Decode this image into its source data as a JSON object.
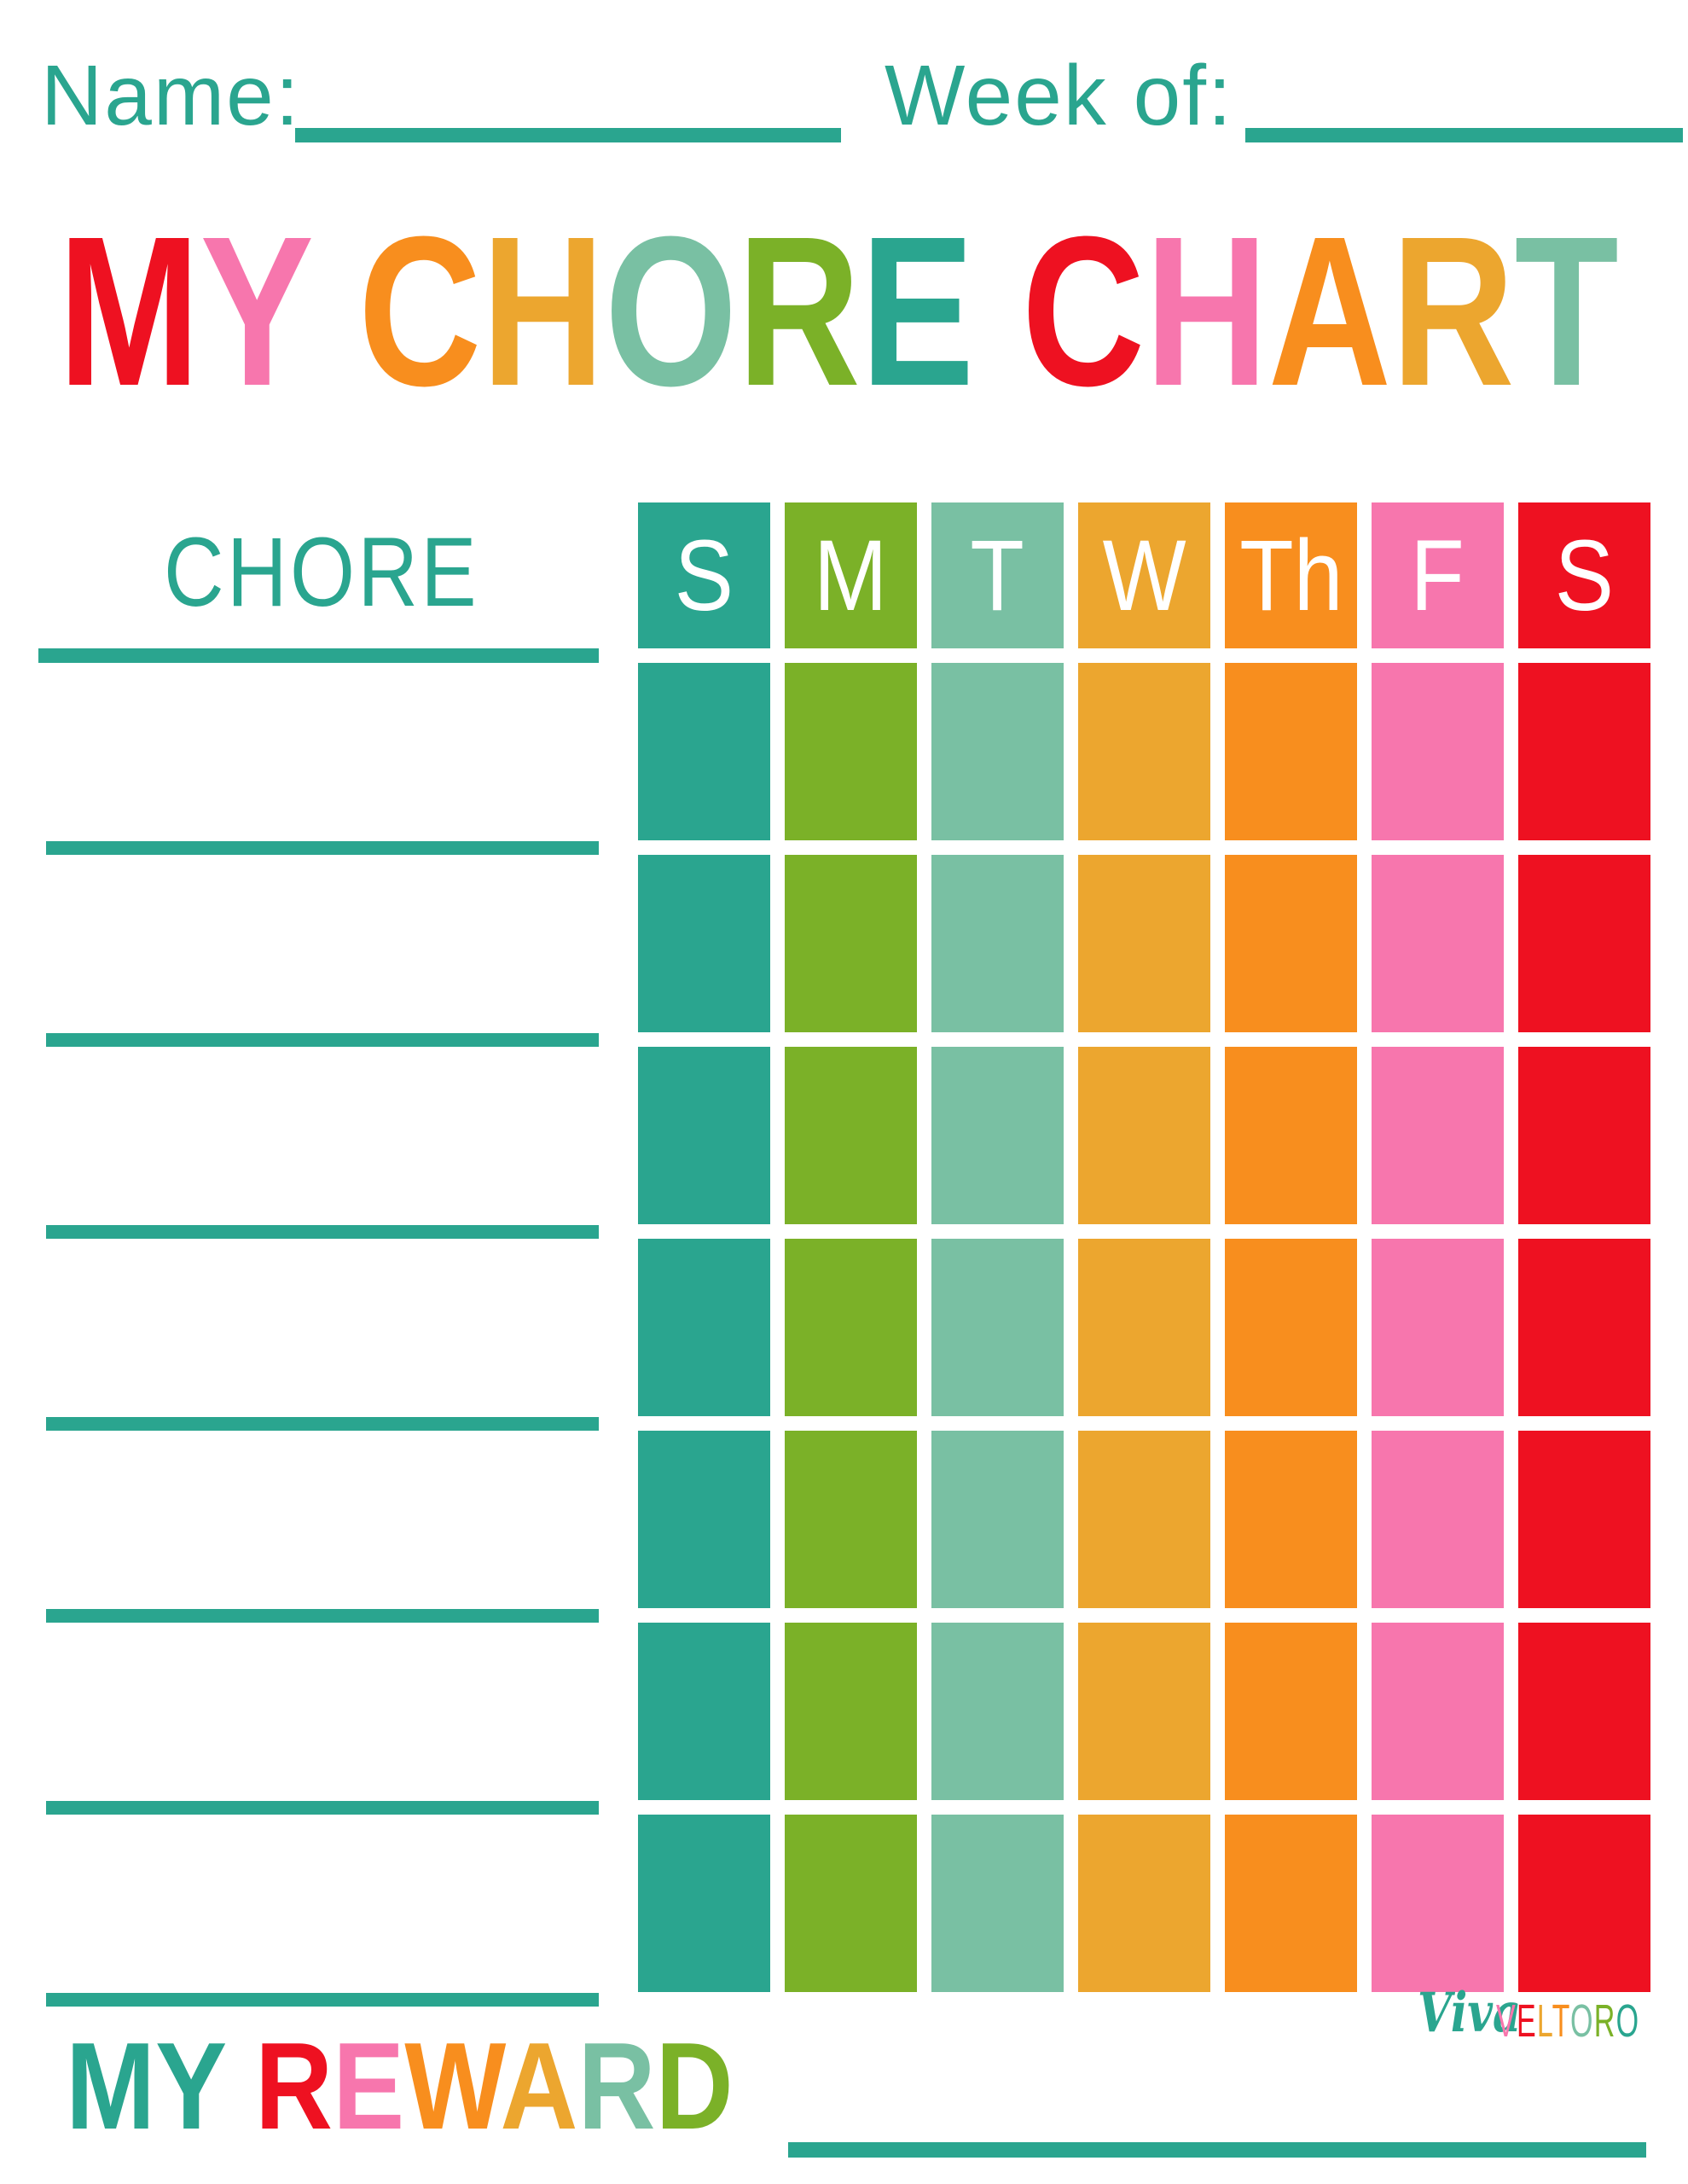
{
  "page": {
    "background": "#ffffff"
  },
  "palette": {
    "teal": "#2aa58f",
    "green": "#7bb128",
    "seafoam": "#79c0a3",
    "gold": "#eca62f",
    "orange": "#f88e1e",
    "pink": "#f776ad",
    "red": "#ee1121"
  },
  "top_fields": {
    "name_label": "Name:",
    "name_value": "",
    "week_label": "Week of:",
    "week_value": ""
  },
  "title": {
    "text": "MY CHORE CHART",
    "letters": [
      {
        "ch": "M",
        "color": "#ee1121"
      },
      {
        "ch": "Y",
        "color": "#f776ad"
      },
      {
        "ch": " "
      },
      {
        "ch": "C",
        "color": "#f88e1e"
      },
      {
        "ch": "H",
        "color": "#eca62f"
      },
      {
        "ch": "O",
        "color": "#79c0a3"
      },
      {
        "ch": "R",
        "color": "#7bb128"
      },
      {
        "ch": "E",
        "color": "#2aa58f"
      },
      {
        "ch": " "
      },
      {
        "ch": "C",
        "color": "#ee1121"
      },
      {
        "ch": "H",
        "color": "#f776ad"
      },
      {
        "ch": "A",
        "color": "#f88e1e"
      },
      {
        "ch": "R",
        "color": "#eca62f"
      },
      {
        "ch": "T",
        "color": "#79c0a3"
      }
    ]
  },
  "chart": {
    "chore_header": "CHORE",
    "row_count": 7,
    "days": [
      {
        "label": "S",
        "name": "sunday",
        "color": "#2aa58f"
      },
      {
        "label": "M",
        "name": "monday",
        "color": "#7bb128"
      },
      {
        "label": "T",
        "name": "tuesday",
        "color": "#79c0a3"
      },
      {
        "label": "W",
        "name": "wednesday",
        "color": "#eca62f"
      },
      {
        "label": "Th",
        "name": "thursday",
        "color": "#f88e1e"
      },
      {
        "label": "F",
        "name": "friday",
        "color": "#f776ad"
      },
      {
        "label": "S",
        "name": "saturday",
        "color": "#ee1121"
      }
    ],
    "chores": [
      "",
      "",
      "",
      "",
      "",
      "",
      ""
    ]
  },
  "reward": {
    "text": "MY REWARD",
    "value": "",
    "letters": [
      {
        "ch": "M",
        "color": "#2aa58f"
      },
      {
        "ch": "Y",
        "color": "#2aa58f"
      },
      {
        "ch": " "
      },
      {
        "ch": "R",
        "color": "#ee1121"
      },
      {
        "ch": "E",
        "color": "#f776ad"
      },
      {
        "ch": "W",
        "color": "#f88e1e"
      },
      {
        "ch": "A",
        "color": "#eca62f"
      },
      {
        "ch": "R",
        "color": "#79c0a3"
      },
      {
        "ch": "D",
        "color": "#7bb128"
      }
    ]
  },
  "branding": {
    "script": "Viva",
    "word": "VELTORO",
    "word_letters": [
      {
        "ch": "V",
        "color": "#f776ad"
      },
      {
        "ch": "E",
        "color": "#ee1121"
      },
      {
        "ch": "L",
        "color": "#eca62f"
      },
      {
        "ch": "T",
        "color": "#f88e1e"
      },
      {
        "ch": "O",
        "color": "#79c0a3"
      },
      {
        "ch": "R",
        "color": "#7bb128"
      },
      {
        "ch": "O",
        "color": "#2aa58f"
      }
    ]
  }
}
